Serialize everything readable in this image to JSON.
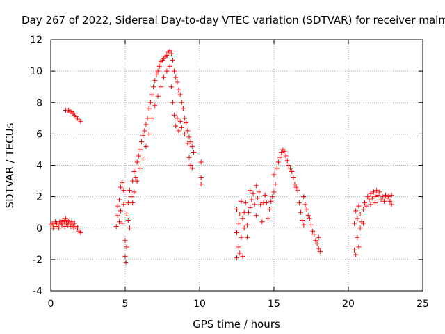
{
  "chart_data": {
    "type": "scatter",
    "title": "Day 267 of 2022, Sidereal Day-to-day VTEC variation (SDTVAR) for receiver malm",
    "xlabel": "GPS time / hours",
    "ylabel": "SDTVAR / TECUs",
    "xlim": [
      0,
      25
    ],
    "ylim": [
      -4,
      12
    ],
    "xticks": [
      0,
      5,
      10,
      15,
      20,
      25
    ],
    "yticks": [
      -4,
      -2,
      0,
      2,
      4,
      6,
      8,
      10,
      12
    ],
    "xtick_labels": [
      "0",
      "5",
      "10",
      "15",
      "20",
      "25"
    ],
    "ytick_labels": [
      "-4",
      "-2",
      "0",
      "2",
      "4",
      "6",
      "8",
      "10",
      "12"
    ],
    "grid": true,
    "marker": "+",
    "color": "#ff0000",
    "series": [
      {
        "name": "SDTVAR",
        "points": [
          [
            0.0,
            0.2
          ],
          [
            0.1,
            0.3
          ],
          [
            0.2,
            0.2
          ],
          [
            0.3,
            0.4
          ],
          [
            0.4,
            0.3
          ],
          [
            0.5,
            0.2
          ],
          [
            0.6,
            0.4
          ],
          [
            0.7,
            0.3
          ],
          [
            0.8,
            0.5
          ],
          [
            0.9,
            0.4
          ],
          [
            1.0,
            0.6
          ],
          [
            1.05,
            0.3
          ],
          [
            1.1,
            0.5
          ],
          [
            1.2,
            0.4
          ],
          [
            1.3,
            0.3
          ],
          [
            1.4,
            0.4
          ],
          [
            1.5,
            0.2
          ],
          [
            1.6,
            0.3
          ],
          [
            1.7,
            0.1
          ],
          [
            1.8,
            0.0
          ],
          [
            1.9,
            -0.2
          ],
          [
            2.0,
            -0.3
          ],
          [
            0.15,
            0.0
          ],
          [
            0.35,
            0.1
          ],
          [
            0.55,
            0.0
          ],
          [
            0.75,
            0.2
          ],
          [
            0.95,
            0.1
          ],
          [
            1.15,
            0.2
          ],
          [
            1.35,
            0.1
          ],
          [
            1.55,
            0.0
          ],
          [
            1.0,
            7.5
          ],
          [
            1.1,
            7.5
          ],
          [
            1.2,
            7.5
          ],
          [
            1.3,
            7.4
          ],
          [
            1.4,
            7.4
          ],
          [
            1.5,
            7.3
          ],
          [
            1.6,
            7.2
          ],
          [
            1.7,
            7.1
          ],
          [
            1.8,
            7.0
          ],
          [
            1.9,
            6.9
          ],
          [
            2.0,
            6.8
          ],
          [
            4.4,
            0.1
          ],
          [
            4.5,
            0.8
          ],
          [
            4.5,
            1.4
          ],
          [
            4.6,
            0.4
          ],
          [
            4.6,
            1.8
          ],
          [
            4.7,
            1.1
          ],
          [
            4.7,
            2.6
          ],
          [
            4.8,
            0.3
          ],
          [
            4.8,
            2.9
          ],
          [
            4.9,
            1.5
          ],
          [
            4.9,
            2.4
          ],
          [
            5.0,
            -0.8
          ],
          [
            5.0,
            -1.8
          ],
          [
            5.05,
            -2.2
          ],
          [
            5.1,
            0.9
          ],
          [
            5.1,
            -1.2
          ],
          [
            5.2,
            1.6
          ],
          [
            5.2,
            0.5
          ],
          [
            5.3,
            2.4
          ],
          [
            5.3,
            0.0
          ],
          [
            5.4,
            2.0
          ],
          [
            5.5,
            3.0
          ],
          [
            5.5,
            1.6
          ],
          [
            5.6,
            3.6
          ],
          [
            5.6,
            2.3
          ],
          [
            5.7,
            3.2
          ],
          [
            5.8,
            4.2
          ],
          [
            5.8,
            3.0
          ],
          [
            5.9,
            4.6
          ],
          [
            6.0,
            5.0
          ],
          [
            6.0,
            3.8
          ],
          [
            6.1,
            5.5
          ],
          [
            6.2,
            5.9
          ],
          [
            6.2,
            4.4
          ],
          [
            6.3,
            6.2
          ],
          [
            6.4,
            6.6
          ],
          [
            6.4,
            5.2
          ],
          [
            6.5,
            7.0
          ],
          [
            6.6,
            7.6
          ],
          [
            6.6,
            6.0
          ],
          [
            6.7,
            8.0
          ],
          [
            6.8,
            8.5
          ],
          [
            6.8,
            7.0
          ],
          [
            6.9,
            9.0
          ],
          [
            7.0,
            9.4
          ],
          [
            7.0,
            7.8
          ],
          [
            7.1,
            9.8
          ],
          [
            7.2,
            10.0
          ],
          [
            7.2,
            8.4
          ],
          [
            7.3,
            10.3
          ],
          [
            7.4,
            10.6
          ],
          [
            7.4,
            9.0
          ],
          [
            7.5,
            10.7
          ],
          [
            7.6,
            10.8
          ],
          [
            7.6,
            9.6
          ],
          [
            7.7,
            10.9
          ],
          [
            7.8,
            11.0
          ],
          [
            7.8,
            10.0
          ],
          [
            7.9,
            11.2
          ],
          [
            8.0,
            11.3
          ],
          [
            8.0,
            10.3
          ],
          [
            8.1,
            11.1
          ],
          [
            8.1,
            9.0
          ],
          [
            8.2,
            10.7
          ],
          [
            8.2,
            8.0
          ],
          [
            8.3,
            10.0
          ],
          [
            8.3,
            7.2
          ],
          [
            8.4,
            9.6
          ],
          [
            8.4,
            6.5
          ],
          [
            8.5,
            9.3
          ],
          [
            8.5,
            7.0
          ],
          [
            8.6,
            8.8
          ],
          [
            8.6,
            6.2
          ],
          [
            8.7,
            8.5
          ],
          [
            8.7,
            6.8
          ],
          [
            8.8,
            8.0
          ],
          [
            8.8,
            6.4
          ],
          [
            8.9,
            7.6
          ],
          [
            9.0,
            7.0
          ],
          [
            9.0,
            6.0
          ],
          [
            9.1,
            6.7
          ],
          [
            9.2,
            6.2
          ],
          [
            9.2,
            5.4
          ],
          [
            9.3,
            5.8
          ],
          [
            9.3,
            4.5
          ],
          [
            9.4,
            5.5
          ],
          [
            9.4,
            4.0
          ],
          [
            9.5,
            5.2
          ],
          [
            9.5,
            3.8
          ],
          [
            9.6,
            4.8
          ],
          [
            10.1,
            4.2
          ],
          [
            10.1,
            3.2
          ],
          [
            10.1,
            2.8
          ],
          [
            12.5,
            -0.3
          ],
          [
            12.5,
            -1.9
          ],
          [
            12.5,
            1.2
          ],
          [
            12.6,
            0.3
          ],
          [
            12.6,
            -1.2
          ],
          [
            12.7,
            0.9
          ],
          [
            12.7,
            -1.6
          ],
          [
            12.8,
            1.7
          ],
          [
            12.8,
            -0.6
          ],
          [
            12.9,
            0.6
          ],
          [
            12.9,
            -1.8
          ],
          [
            13.0,
            1.0
          ],
          [
            13.0,
            0.0
          ],
          [
            13.1,
            1.6
          ],
          [
            13.2,
            0.2
          ],
          [
            13.2,
            -0.6
          ],
          [
            13.3,
            1.0
          ],
          [
            13.4,
            2.4
          ],
          [
            13.4,
            1.3
          ],
          [
            13.5,
            1.8
          ],
          [
            13.6,
            2.2
          ],
          [
            13.7,
            1.5
          ],
          [
            13.8,
            2.7
          ],
          [
            13.8,
            0.8
          ],
          [
            13.9,
            1.9
          ],
          [
            14.0,
            2.3
          ],
          [
            14.1,
            1.5
          ],
          [
            14.2,
            0.4
          ],
          [
            14.3,
            1.6
          ],
          [
            14.4,
            2.1
          ],
          [
            14.5,
            1.6
          ],
          [
            14.6,
            0.6
          ],
          [
            14.7,
            1.2
          ],
          [
            14.8,
            1.7
          ],
          [
            14.9,
            2.0
          ],
          [
            15.0,
            2.3
          ],
          [
            15.0,
            3.4
          ],
          [
            15.1,
            2.8
          ],
          [
            15.2,
            3.8
          ],
          [
            15.3,
            4.2
          ],
          [
            15.4,
            4.5
          ],
          [
            15.5,
            4.8
          ],
          [
            15.6,
            5.0
          ],
          [
            15.7,
            4.9
          ],
          [
            15.8,
            4.6
          ],
          [
            15.9,
            4.3
          ],
          [
            16.0,
            4.0
          ],
          [
            16.1,
            3.8
          ],
          [
            16.2,
            3.6
          ],
          [
            16.3,
            3.2
          ],
          [
            16.4,
            2.8
          ],
          [
            16.5,
            2.6
          ],
          [
            16.6,
            2.4
          ],
          [
            16.7,
            1.6
          ],
          [
            16.8,
            1.0
          ],
          [
            16.9,
            0.5
          ],
          [
            17.0,
            0.2
          ],
          [
            17.0,
            2.0
          ],
          [
            17.1,
            1.5
          ],
          [
            17.2,
            1.2
          ],
          [
            17.3,
            0.8
          ],
          [
            17.4,
            0.6
          ],
          [
            17.5,
            0.2
          ],
          [
            17.6,
            -0.2
          ],
          [
            17.7,
            -0.4
          ],
          [
            17.8,
            -0.8
          ],
          [
            17.9,
            -1.0
          ],
          [
            18.0,
            -1.3
          ],
          [
            18.1,
            -1.5
          ],
          [
            18.0,
            -0.6
          ],
          [
            20.4,
            0.3
          ],
          [
            20.4,
            -1.4
          ],
          [
            20.5,
            1.1
          ],
          [
            20.5,
            -1.7
          ],
          [
            20.6,
            -0.6
          ],
          [
            20.6,
            0.6
          ],
          [
            20.7,
            -1.2
          ],
          [
            20.7,
            1.4
          ],
          [
            20.8,
            0.0
          ],
          [
            20.8,
            0.9
          ],
          [
            20.9,
            0.4
          ],
          [
            21.0,
            1.2
          ],
          [
            21.0,
            0.3
          ],
          [
            21.1,
            1.6
          ],
          [
            21.2,
            1.4
          ],
          [
            21.3,
            2.0
          ],
          [
            21.4,
            1.8
          ],
          [
            21.5,
            2.2
          ],
          [
            21.6,
            1.9
          ],
          [
            21.7,
            2.3
          ],
          [
            21.8,
            2.0
          ],
          [
            21.9,
            2.4
          ],
          [
            22.0,
            2.1
          ],
          [
            22.1,
            2.3
          ],
          [
            22.2,
            1.8
          ],
          [
            22.3,
            2.0
          ],
          [
            22.4,
            1.7
          ],
          [
            22.5,
            2.1
          ],
          [
            22.6,
            1.9
          ],
          [
            22.7,
            2.0
          ],
          [
            22.8,
            1.7
          ],
          [
            22.9,
            2.1
          ],
          [
            22.9,
            1.5
          ],
          [
            21.5,
            1.5
          ],
          [
            21.8,
            1.6
          ]
        ]
      }
    ]
  }
}
